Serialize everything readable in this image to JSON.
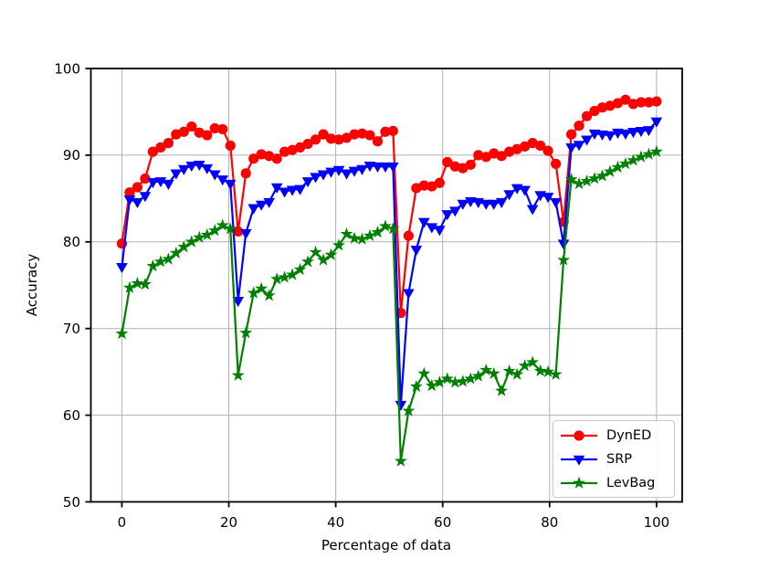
{
  "figure": {
    "background": "#ffffff",
    "grid_color": "#b0b0b0",
    "axis_color": "#000000"
  },
  "chart_data": {
    "type": "line",
    "title": "",
    "xlabel": "Percentage of data",
    "ylabel": "Accuracy",
    "xlim": [
      -5.8,
      104.8
    ],
    "ylim": [
      50,
      100
    ],
    "xticks": [
      0,
      20,
      40,
      60,
      80,
      100
    ],
    "yticks": [
      50,
      60,
      70,
      80,
      90,
      100
    ],
    "grid": true,
    "legend_position": "lower right",
    "x": [
      0,
      1.45,
      2.9,
      4.35,
      5.8,
      7.25,
      8.7,
      10.14,
      11.59,
      13.04,
      14.49,
      15.94,
      17.39,
      18.84,
      20.29,
      21.74,
      23.19,
      24.64,
      26.09,
      27.54,
      28.99,
      30.43,
      31.88,
      33.33,
      34.78,
      36.23,
      37.68,
      39.13,
      40.58,
      42.03,
      43.48,
      44.93,
      46.38,
      47.83,
      49.28,
      50.72,
      52.17,
      53.62,
      55.07,
      56.52,
      57.97,
      59.42,
      60.87,
      62.32,
      63.77,
      65.22,
      66.67,
      68.12,
      69.57,
      71.01,
      72.46,
      73.91,
      75.36,
      76.81,
      78.26,
      79.71,
      81.16,
      82.61,
      84.06,
      85.51,
      86.96,
      88.41,
      89.86,
      91.3,
      92.75,
      94.2,
      95.65,
      97.1,
      98.55,
      100
    ],
    "series": [
      {
        "name": "DynED",
        "color": "#ff0000",
        "marker": "circle",
        "values": [
          79.8,
          85.7,
          86.3,
          87.3,
          90.4,
          90.9,
          91.4,
          92.4,
          92.7,
          93.3,
          92.6,
          92.3,
          93.1,
          93.0,
          91.1,
          81.2,
          87.9,
          89.6,
          90.1,
          89.9,
          89.6,
          90.4,
          90.6,
          90.9,
          91.3,
          91.8,
          92.4,
          91.9,
          91.8,
          92.0,
          92.4,
          92.5,
          92.3,
          91.6,
          92.7,
          92.8,
          71.8,
          80.7,
          86.2,
          86.5,
          86.4,
          86.8,
          89.2,
          88.7,
          88.5,
          88.9,
          90.0,
          89.8,
          90.2,
          89.9,
          90.4,
          90.7,
          91.0,
          91.4,
          91.1,
          90.5,
          89.0,
          82.3,
          92.4,
          93.4,
          94.5,
          95.1,
          95.5,
          95.7,
          96.0,
          96.4,
          95.9,
          96.1,
          96.1,
          96.2
        ]
      },
      {
        "name": "SRP",
        "color": "#0000ff",
        "marker": "triangle-down",
        "values": [
          77.1,
          84.9,
          84.6,
          85.3,
          86.9,
          87.0,
          86.7,
          87.9,
          88.4,
          88.8,
          88.9,
          88.5,
          87.8,
          87.2,
          86.7,
          73.2,
          81.0,
          83.9,
          84.3,
          84.6,
          86.3,
          85.8,
          86.0,
          86.1,
          87.0,
          87.5,
          87.8,
          88.1,
          88.3,
          87.9,
          88.2,
          88.4,
          88.8,
          88.7,
          88.7,
          88.7,
          61.2,
          74.1,
          79.1,
          82.3,
          81.7,
          81.4,
          83.2,
          83.6,
          84.4,
          84.7,
          84.6,
          84.4,
          84.4,
          84.6,
          85.5,
          86.2,
          86.0,
          83.8,
          85.4,
          85.2,
          84.6,
          79.8,
          90.9,
          91.2,
          91.8,
          92.5,
          92.4,
          92.3,
          92.6,
          92.5,
          92.7,
          92.8,
          92.9,
          93.9
        ]
      },
      {
        "name": "LevBag",
        "color": "#008000",
        "marker": "star",
        "values": [
          69.4,
          74.7,
          75.2,
          75.1,
          77.2,
          77.7,
          78.0,
          78.7,
          79.4,
          80.0,
          80.5,
          80.8,
          81.3,
          81.9,
          81.5,
          64.6,
          69.5,
          74.1,
          74.6,
          73.8,
          75.7,
          75.9,
          76.2,
          76.8,
          77.7,
          78.8,
          77.9,
          78.5,
          79.6,
          80.9,
          80.4,
          80.3,
          80.7,
          81.1,
          81.8,
          81.5,
          54.7,
          60.5,
          63.3,
          64.8,
          63.4,
          63.8,
          64.2,
          63.8,
          63.9,
          64.2,
          64.5,
          65.2,
          64.8,
          62.8,
          65.1,
          64.7,
          65.7,
          66.1,
          65.1,
          65.0,
          64.7,
          77.9,
          87.2,
          86.7,
          87.0,
          87.3,
          87.6,
          88.1,
          88.6,
          89.0,
          89.4,
          89.8,
          90.1,
          90.4
        ]
      }
    ]
  }
}
